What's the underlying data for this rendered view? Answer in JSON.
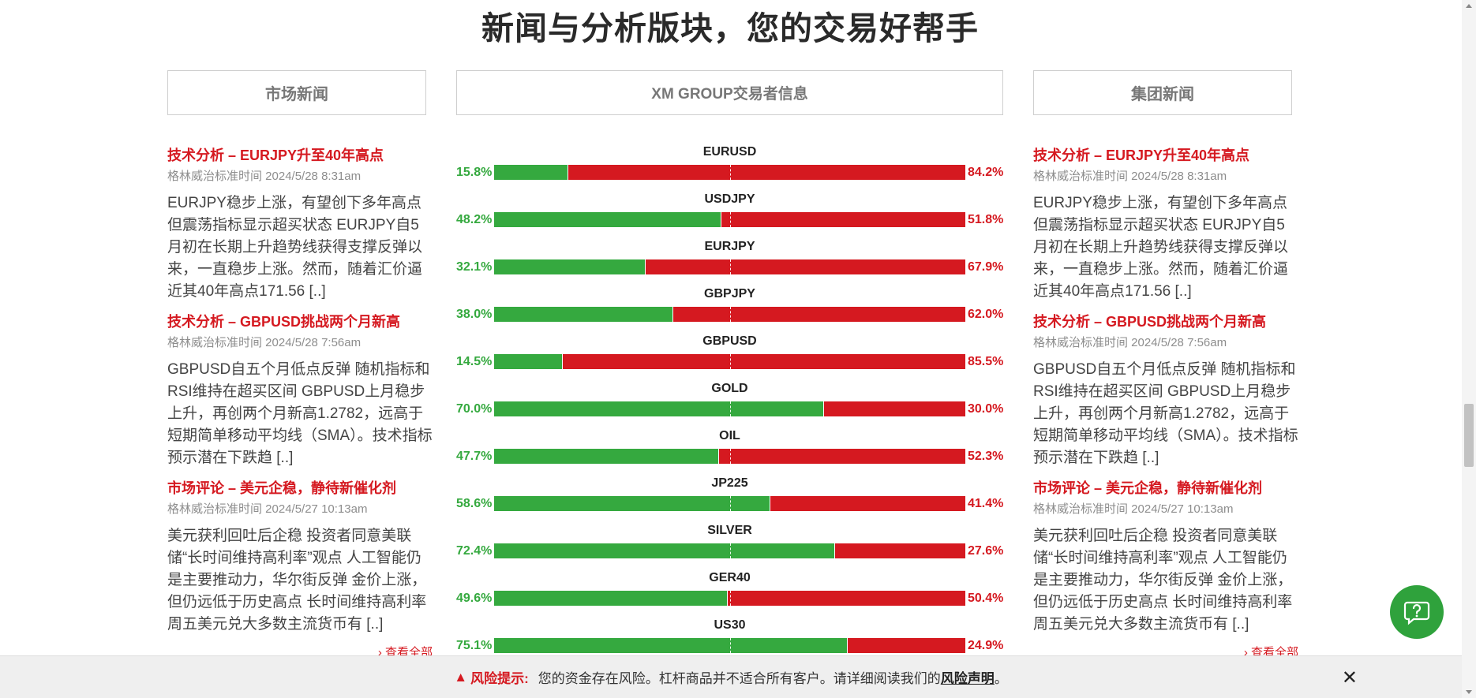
{
  "headline": "新闻与分析版块，您的交易好帮手",
  "tabs": {
    "left": "市场新闻",
    "middle": "XM GROUP交易者信息",
    "right": "集团新闻"
  },
  "news_left": {
    "articles": [
      {
        "title": "技术分析 – EURJPY升至40年高点",
        "meta": "格林威治标准时间 2024/5/28 8:31am",
        "body": "EURJPY稳步上涨，有望创下多年高点 但震荡指标显示超买状态 EURJPY自5月初在长期上升趋势线获得支撑反弹以来，一直稳步上涨。然而，随着汇价逼近其40年高点171.56 [..]"
      },
      {
        "title": "技术分析 – GBPUSD挑战两个月新高",
        "meta": "格林威治标准时间 2024/5/28 7:56am",
        "body": "GBPUSD自五个月低点反弹 随机指标和RSI维持在超买区间 GBPUSD上月稳步上升，再创两个月新高1.2782，远高于短期简单移动平均线（SMA）。技术指标预示潜在下跌趋 [..]"
      },
      {
        "title": "市场评论 – 美元企稳，静待新催化剂",
        "meta": "格林威治标准时间 2024/5/27 10:13am",
        "body": "美元获利回吐后企稳 投资者同意美联储“长时间维持高利率”观点 人工智能仍是主要推动力，华尔街反弹 金价上涨，但仍远低于历史高点 长时间维持高利率 周五美元兑大多数主流货币有 [..]"
      }
    ],
    "more": "› 查看全部"
  },
  "news_right": {
    "articles": [
      {
        "title": "技术分析 – EURJPY升至40年高点",
        "meta": "格林威治标准时间 2024/5/28 8:31am",
        "body": "EURJPY稳步上涨，有望创下多年高点 但震荡指标显示超买状态 EURJPY自5月初在长期上升趋势线获得支撑反弹以来，一直稳步上涨。然而，随着汇价逼近其40年高点171.56 [..]"
      },
      {
        "title": "技术分析 – GBPUSD挑战两个月新高",
        "meta": "格林威治标准时间 2024/5/28 7:56am",
        "body": "GBPUSD自五个月低点反弹 随机指标和RSI维持在超买区间 GBPUSD上月稳步上升，再创两个月新高1.2782，远高于短期简单移动平均线（SMA）。技术指标预示潜在下跌趋 [..]"
      },
      {
        "title": "市场评论 – 美元企稳，静待新催化剂",
        "meta": "格林威治标准时间 2024/5/27 10:13am",
        "body": "美元获利回吐后企稳 投资者同意美联储“长时间维持高利率”观点 人工智能仍是主要推动力，华尔街反弹 金价上涨，但仍远低于历史高点 长时间维持高利率 周五美元兑大多数主流货币有 [..]"
      }
    ],
    "more": "› 查看全部"
  },
  "sentiment": [
    {
      "symbol": "EURUSD",
      "buy": 15.8,
      "sell": 84.2,
      "buy_label": "15.8%",
      "sell_label": "84.2%"
    },
    {
      "symbol": "USDJPY",
      "buy": 48.2,
      "sell": 51.8,
      "buy_label": "48.2%",
      "sell_label": "51.8%"
    },
    {
      "symbol": "EURJPY",
      "buy": 32.1,
      "sell": 67.9,
      "buy_label": "32.1%",
      "sell_label": "67.9%"
    },
    {
      "symbol": "GBPJPY",
      "buy": 38.0,
      "sell": 62.0,
      "buy_label": "38.0%",
      "sell_label": "62.0%"
    },
    {
      "symbol": "GBPUSD",
      "buy": 14.5,
      "sell": 85.5,
      "buy_label": "14.5%",
      "sell_label": "85.5%"
    },
    {
      "symbol": "GOLD",
      "buy": 70.0,
      "sell": 30.0,
      "buy_label": "70.0%",
      "sell_label": "30.0%"
    },
    {
      "symbol": "OIL",
      "buy": 47.7,
      "sell": 52.3,
      "buy_label": "47.7%",
      "sell_label": "52.3%"
    },
    {
      "symbol": "JP225",
      "buy": 58.6,
      "sell": 41.4,
      "buy_label": "58.6%",
      "sell_label": "41.4%"
    },
    {
      "symbol": "SILVER",
      "buy": 72.4,
      "sell": 27.6,
      "buy_label": "72.4%",
      "sell_label": "27.6%"
    },
    {
      "symbol": "GER40",
      "buy": 49.6,
      "sell": 50.4,
      "buy_label": "49.6%",
      "sell_label": "50.4%"
    },
    {
      "symbol": "US30",
      "buy": 75.1,
      "sell": 24.9,
      "buy_label": "75.1%",
      "sell_label": "24.9%"
    }
  ],
  "colors": {
    "buy": "#35a93f",
    "sell": "#d51920",
    "accent": "#d51920",
    "chat": "#2fa23c"
  },
  "risk": {
    "icon": "warning-icon",
    "label": "风险提示:",
    "text": "您的资金存在风险。杠杆商品并不适合所有客户。请详细阅读我们的",
    "link": "风险声明",
    "suffix": "。",
    "close": "✕"
  },
  "chat": {
    "icon": "help-question-icon"
  }
}
